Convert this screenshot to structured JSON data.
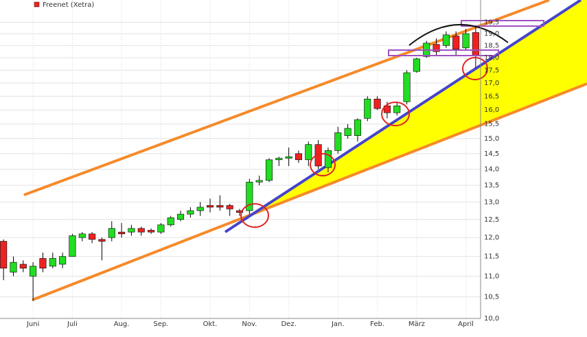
{
  "chart_data": {
    "type": "candlestick",
    "categories": [
      null,
      null,
      null,
      "Juni",
      null,
      null,
      null,
      "Juli",
      null,
      null,
      null,
      null,
      "Aug.",
      null,
      null,
      null,
      "Sep.",
      null,
      null,
      null,
      null,
      "Okt.",
      null,
      null,
      null,
      "Nov.",
      null,
      null,
      null,
      "Dez.",
      null,
      null,
      null,
      null,
      "Jan.",
      null,
      null,
      null,
      "Feb.",
      null,
      null,
      null,
      "März",
      null,
      null,
      null,
      null,
      "April",
      null
    ],
    "series": [
      {
        "name": "Freenet (Xetra)",
        "color": "#e02828",
        "up_color": "#22dd22",
        "down_color": "#ee2222",
        "open": [
          11.9,
          11.1,
          11.3,
          11.0,
          11.45,
          11.25,
          11.3,
          11.5,
          12.0,
          12.1,
          11.95,
          12.0,
          12.15,
          12.15,
          12.25,
          12.2,
          12.15,
          12.35,
          12.5,
          12.65,
          12.75,
          12.9,
          12.9,
          12.9,
          12.75,
          12.75,
          13.6,
          13.65,
          14.3,
          14.35,
          14.5,
          14.3,
          14.8,
          14.05,
          14.6,
          15.1,
          15.1,
          15.7,
          16.4,
          16.15,
          15.9,
          16.3,
          17.45,
          18.05,
          18.55,
          18.5,
          18.9,
          18.4,
          19.05
        ],
        "high": [
          11.95,
          11.5,
          11.4,
          11.35,
          11.6,
          11.6,
          11.6,
          12.1,
          12.15,
          12.15,
          12.0,
          12.45,
          12.4,
          12.35,
          12.3,
          12.25,
          12.4,
          12.6,
          12.75,
          12.85,
          13.0,
          13.1,
          13.2,
          12.95,
          12.8,
          13.7,
          13.8,
          14.35,
          14.4,
          14.7,
          14.6,
          14.9,
          14.95,
          14.7,
          15.4,
          15.5,
          15.7,
          16.5,
          16.5,
          16.3,
          16.3,
          17.5,
          18.0,
          18.7,
          18.8,
          19.1,
          19.1,
          19.2,
          19.3
        ],
        "low": [
          10.9,
          11.0,
          11.1,
          10.4,
          11.1,
          11.2,
          11.2,
          11.5,
          11.9,
          11.85,
          11.4,
          11.9,
          12.0,
          12.05,
          12.05,
          12.1,
          12.1,
          12.3,
          12.45,
          12.55,
          12.6,
          12.7,
          12.75,
          12.6,
          12.6,
          12.65,
          13.5,
          13.6,
          14.1,
          14.1,
          14.2,
          14.1,
          14.0,
          13.9,
          14.5,
          15.0,
          14.9,
          15.6,
          16.0,
          15.7,
          15.8,
          16.2,
          17.4,
          18.0,
          18.1,
          18.4,
          18.1,
          18.3,
          17.6
        ],
        "close": [
          11.2,
          11.35,
          11.2,
          11.25,
          11.2,
          11.45,
          11.5,
          12.05,
          12.1,
          11.95,
          11.9,
          12.25,
          12.1,
          12.25,
          12.15,
          12.15,
          12.35,
          12.55,
          12.65,
          12.75,
          12.85,
          12.85,
          12.85,
          12.8,
          12.7,
          13.6,
          13.65,
          14.3,
          14.35,
          14.4,
          14.3,
          14.8,
          14.1,
          14.6,
          15.2,
          15.35,
          15.65,
          16.4,
          16.05,
          15.9,
          16.15,
          17.4,
          17.95,
          18.6,
          18.25,
          18.95,
          18.35,
          19.0,
          18.1
        ]
      }
    ],
    "ylim": [
      10,
      20.5
    ],
    "log_y": true,
    "grid": true,
    "yticks": [
      {
        "value": 10,
        "label": "10,0"
      },
      {
        "value": 10.5,
        "label": "10,5"
      },
      {
        "value": 11,
        "label": "11,0"
      },
      {
        "value": 11.5,
        "label": "11,5"
      },
      {
        "value": 12,
        "label": "12,0"
      },
      {
        "value": 12.5,
        "label": "12,5"
      },
      {
        "value": 13,
        "label": "13,0"
      },
      {
        "value": 13.5,
        "label": "13,5"
      },
      {
        "value": 14,
        "label": "14,0"
      },
      {
        "value": 14.5,
        "label": "14,5"
      },
      {
        "value": 15,
        "label": "15,0"
      },
      {
        "value": 15.5,
        "label": "15,5"
      },
      {
        "value": 16,
        "label": "16,0"
      },
      {
        "value": 16.5,
        "label": "16,5"
      },
      {
        "value": 17,
        "label": "17,0"
      },
      {
        "value": 17.5,
        "label": "17,5"
      },
      {
        "value": 18,
        "label": "18,0"
      },
      {
        "value": 18.5,
        "label": "18,5"
      },
      {
        "value": 19,
        "label": "19,0"
      },
      {
        "value": 19.5,
        "label": "19,5"
      }
    ]
  }
}
